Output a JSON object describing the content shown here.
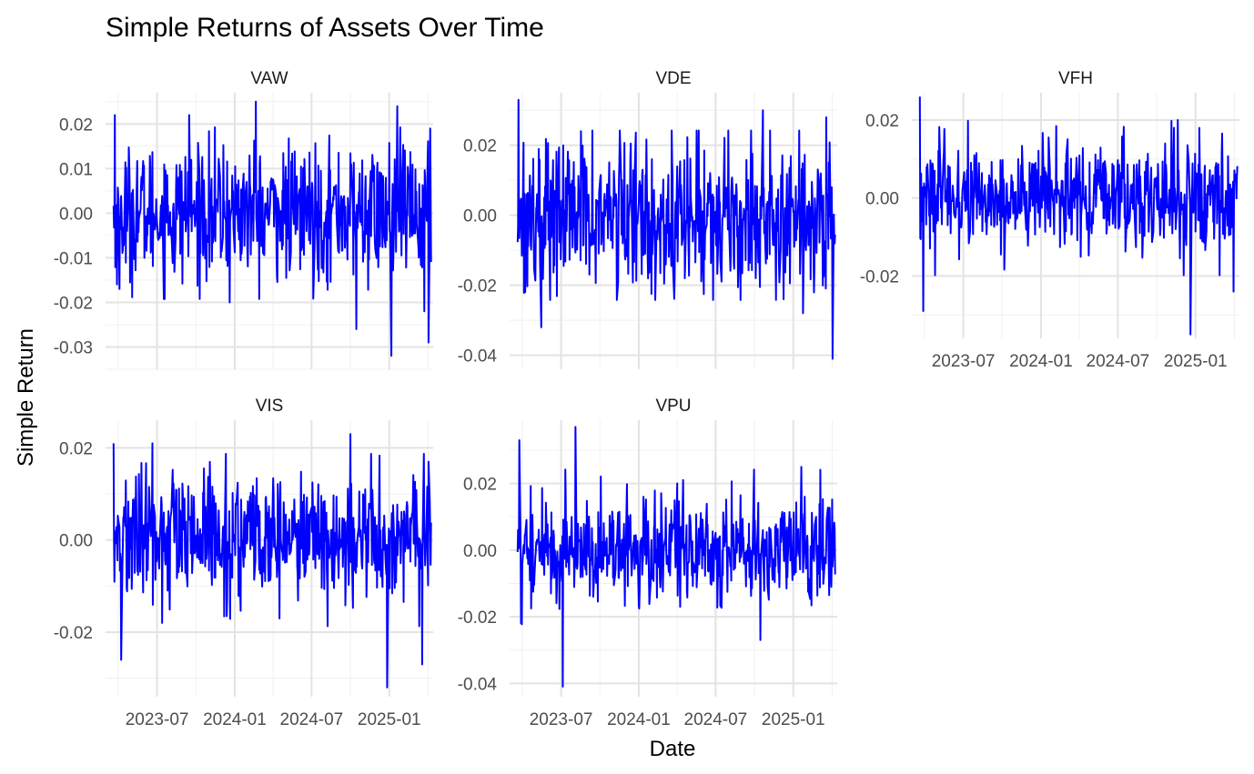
{
  "chart_data": {
    "type": "line",
    "title": "Simple Returns of Assets Over Time",
    "xlabel": "Date",
    "ylabel": "Simple Return",
    "line_color": "#0000ff",
    "grid": true,
    "x_tick_labels": [
      "2023-07",
      "2024-01",
      "2024-07",
      "2025-01"
    ],
    "x_tick_dates": [
      "2023-07-01",
      "2024-01-01",
      "2024-07-01",
      "2025-01-01"
    ],
    "x_range": [
      "2023-03-01",
      "2025-04-15"
    ],
    "panels": [
      {
        "name": "VAW",
        "ylim": [
          -0.035,
          0.027
        ],
        "y_ticks": [
          -0.03,
          -0.02,
          -0.01,
          0.0,
          0.01,
          0.02
        ],
        "y_tick_labels": [
          "-0.03",
          "-0.02",
          "-0.01",
          "0.00",
          "0.01",
          "0.02"
        ],
        "amplitude": 0.0075,
        "extremes": [
          {
            "date": "2023-03-23",
            "value": 0.022
          },
          {
            "date": "2023-04-02",
            "value": -0.017
          },
          {
            "date": "2023-09-15",
            "value": 0.022
          },
          {
            "date": "2023-12-20",
            "value": -0.02
          },
          {
            "date": "2024-02-20",
            "value": 0.025
          },
          {
            "date": "2024-10-15",
            "value": -0.026
          },
          {
            "date": "2025-01-05",
            "value": -0.032
          },
          {
            "date": "2025-01-20",
            "value": 0.024
          },
          {
            "date": "2025-03-25",
            "value": -0.022
          },
          {
            "date": "2025-04-05",
            "value": -0.029
          },
          {
            "date": "2025-04-08",
            "value": 0.019
          }
        ]
      },
      {
        "name": "VDE",
        "ylim": [
          -0.044,
          0.035
        ],
        "y_ticks": [
          -0.04,
          -0.02,
          0.0,
          0.02
        ],
        "y_tick_labels": [
          "-0.04",
          "-0.02",
          "0.00",
          "0.02"
        ],
        "amplitude": 0.011,
        "extremes": [
          {
            "date": "2023-03-22",
            "value": 0.033
          },
          {
            "date": "2023-05-15",
            "value": -0.032
          },
          {
            "date": "2024-10-20",
            "value": 0.03
          },
          {
            "date": "2025-01-25",
            "value": -0.028
          },
          {
            "date": "2025-04-05",
            "value": -0.041
          },
          {
            "date": "2025-03-20",
            "value": 0.028
          }
        ]
      },
      {
        "name": "VFH",
        "ylim": [
          -0.036,
          0.027
        ],
        "y_ticks": [
          -0.02,
          0.0,
          0.02
        ],
        "y_tick_labels": [
          "-0.02",
          "0.00",
          "0.02"
        ],
        "amplitude": 0.007,
        "extremes": [
          {
            "date": "2023-03-20",
            "value": 0.026
          },
          {
            "date": "2023-03-28",
            "value": -0.029
          },
          {
            "date": "2024-11-20",
            "value": 0.02
          },
          {
            "date": "2024-12-20",
            "value": -0.035
          },
          {
            "date": "2025-04-01",
            "value": -0.024
          },
          {
            "date": "2025-01-10",
            "value": 0.018
          }
        ]
      },
      {
        "name": "VIS",
        "ylim": [
          -0.034,
          0.026
        ],
        "y_ticks": [
          -0.02,
          0.0,
          0.02
        ],
        "y_tick_labels": [
          "-0.02",
          "0.00",
          "0.02"
        ],
        "amplitude": 0.007,
        "extremes": [
          {
            "date": "2023-03-20",
            "value": 0.021
          },
          {
            "date": "2023-04-08",
            "value": -0.026
          },
          {
            "date": "2023-06-20",
            "value": 0.021
          },
          {
            "date": "2024-10-01",
            "value": 0.023
          },
          {
            "date": "2024-12-28",
            "value": -0.032
          },
          {
            "date": "2025-03-20",
            "value": -0.027
          },
          {
            "date": "2025-04-05",
            "value": 0.017
          }
        ]
      },
      {
        "name": "VPU",
        "ylim": [
          -0.044,
          0.039
        ],
        "y_ticks": [
          -0.04,
          -0.02,
          0.0,
          0.02
        ],
        "y_tick_labels": [
          "-0.04",
          "-0.02",
          "0.00",
          "0.02"
        ],
        "amplitude": 0.008,
        "extremes": [
          {
            "date": "2023-03-25",
            "value": 0.033
          },
          {
            "date": "2023-03-28",
            "value": -0.022
          },
          {
            "date": "2023-07-05",
            "value": -0.041
          },
          {
            "date": "2023-08-05",
            "value": 0.037
          },
          {
            "date": "2024-10-15",
            "value": -0.027
          },
          {
            "date": "2025-01-20",
            "value": 0.025
          }
        ]
      }
    ]
  }
}
